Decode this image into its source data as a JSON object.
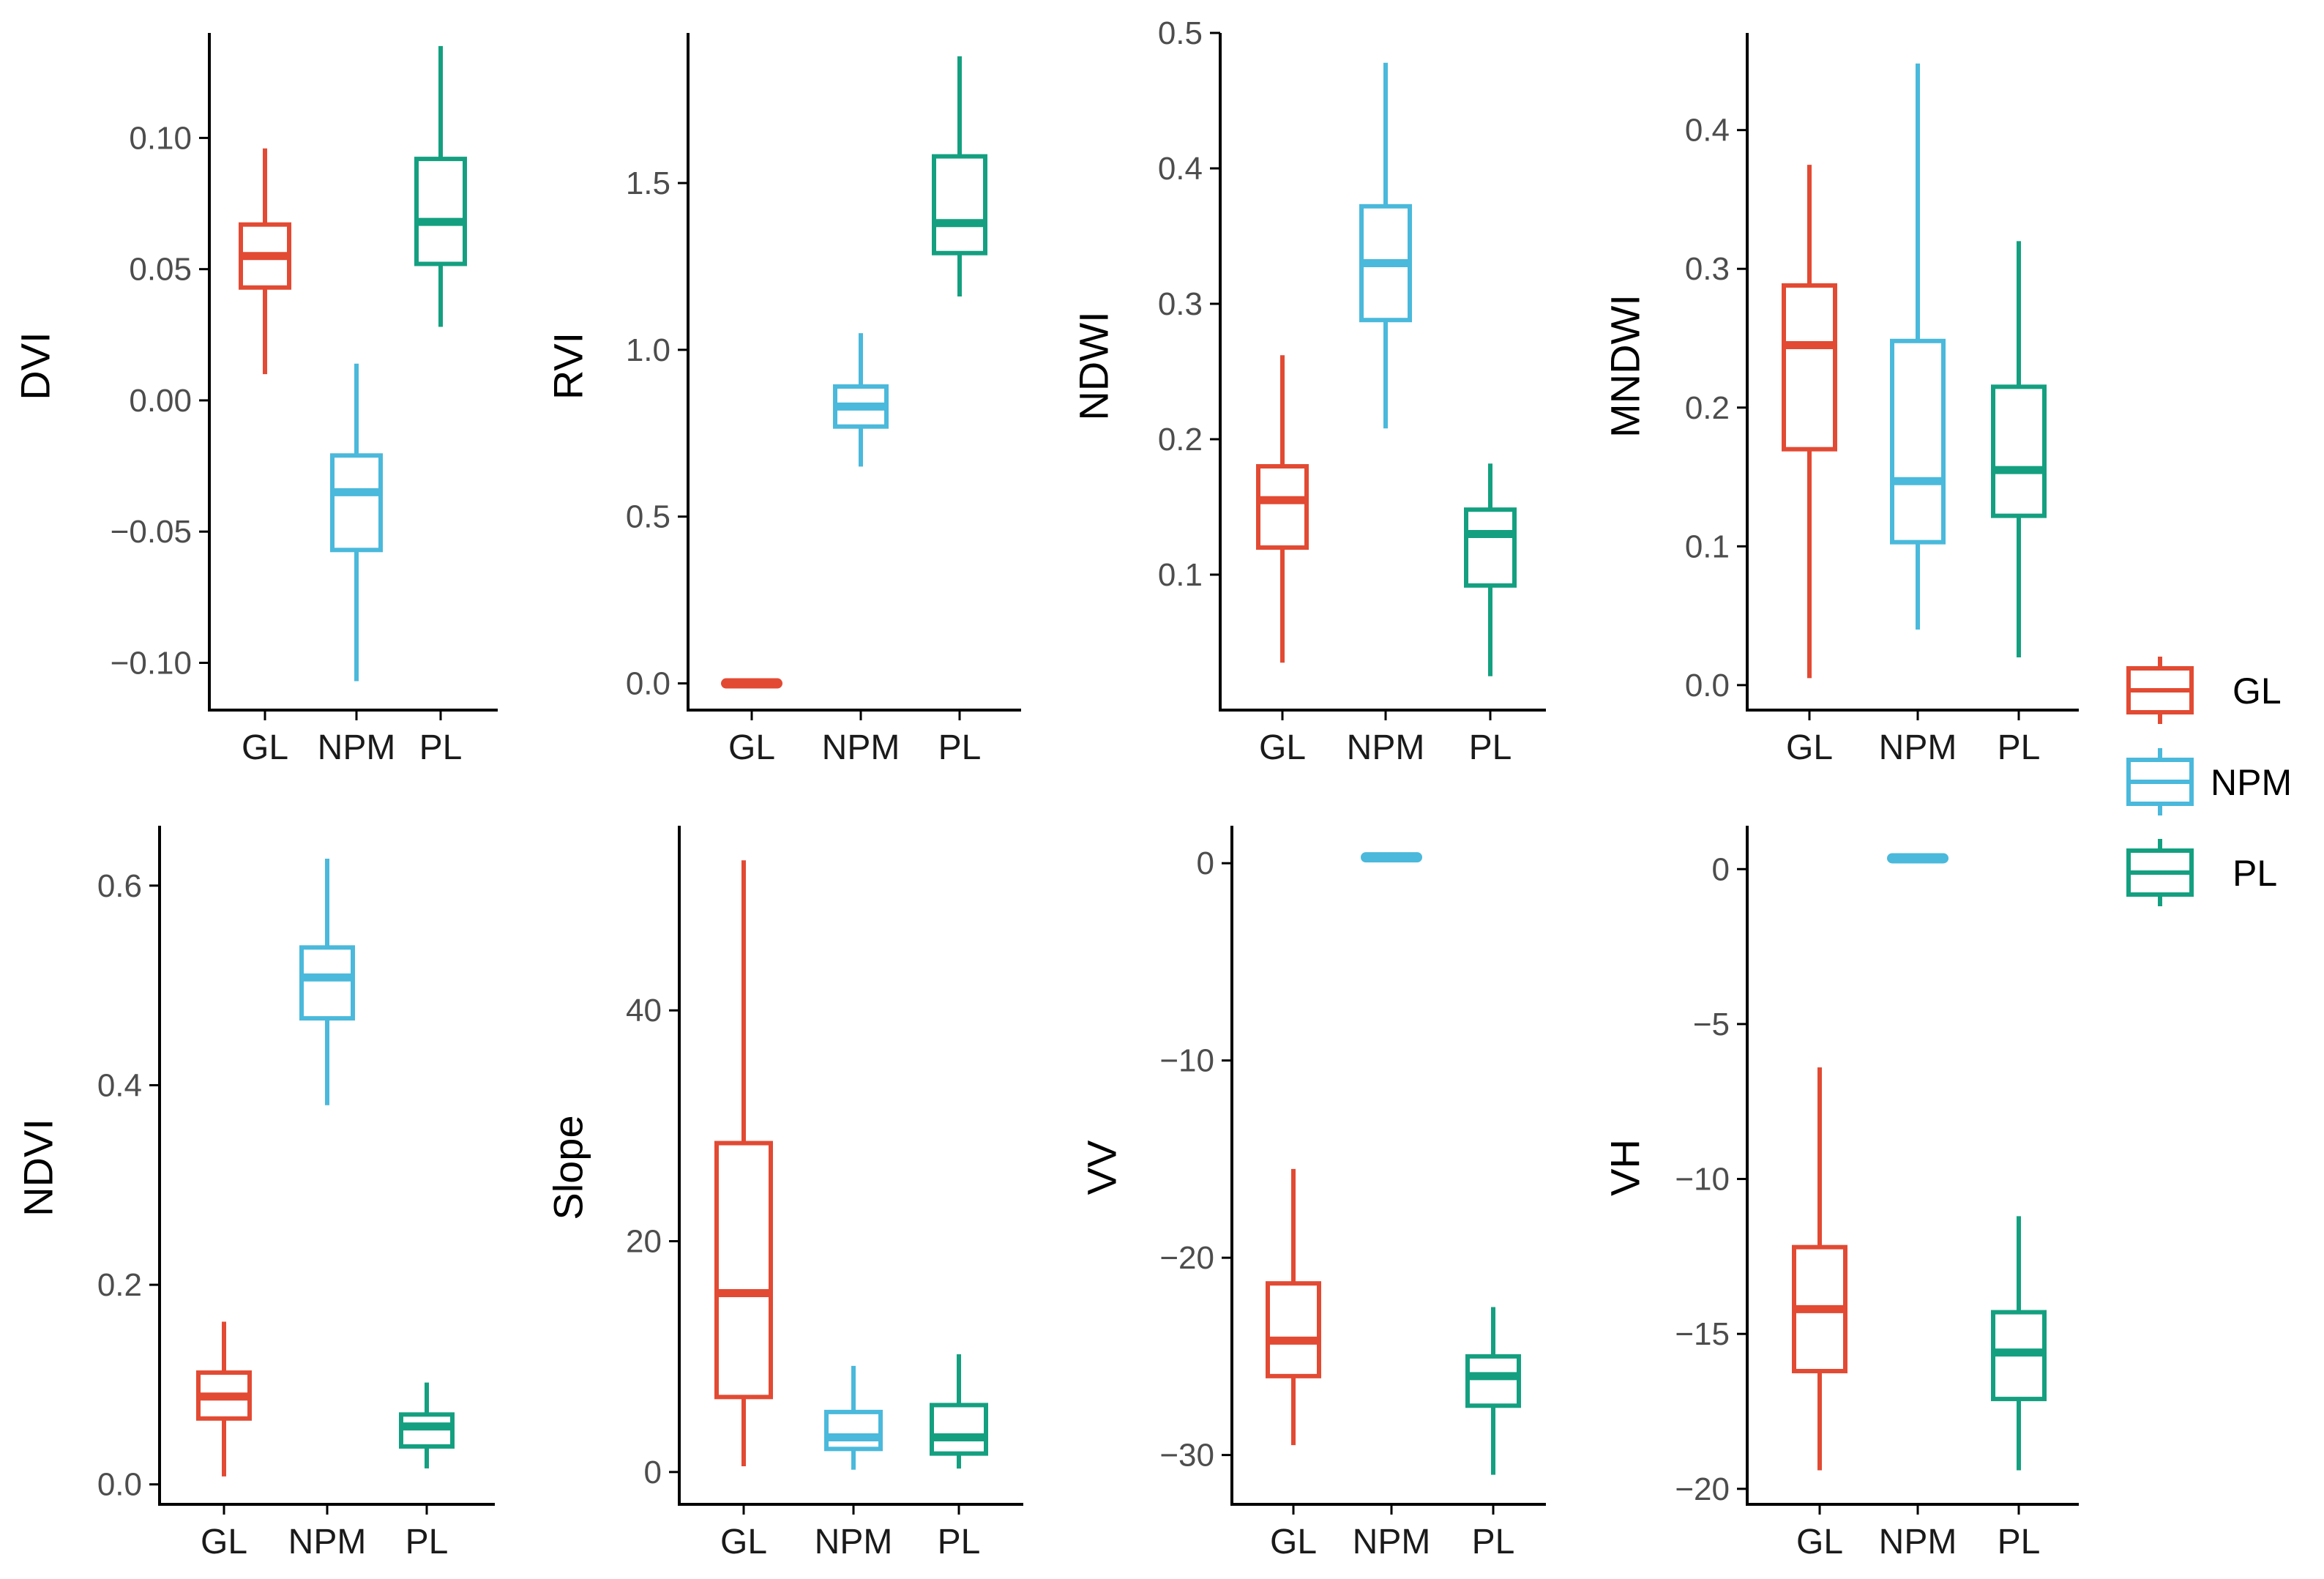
{
  "colors": {
    "GL": "#e24a33",
    "NPM": "#4ab9db",
    "PL": "#14a080",
    "axis": "#000000",
    "tick_text": "#4d4d4d"
  },
  "legend": {
    "position": "right",
    "entries": [
      {
        "key": "GL",
        "label": "GL"
      },
      {
        "key": "NPM",
        "label": "NPM"
      },
      {
        "key": "PL",
        "label": "PL"
      }
    ]
  },
  "chart_data": [
    {
      "type": "boxplot",
      "ylabel": "DVI",
      "categories": [
        "GL",
        "NPM",
        "PL"
      ],
      "ylim": [
        -0.118,
        0.14
      ],
      "yticks": [
        -0.1,
        -0.05,
        0.0,
        0.05,
        0.1
      ],
      "ytick_labels": [
        "−0.10",
        "−0.05",
        "0.00",
        "0.05",
        "0.10"
      ],
      "series": [
        {
          "name": "GL",
          "min": 0.01,
          "q1": 0.043,
          "median": 0.055,
          "q3": 0.067,
          "max": 0.096
        },
        {
          "name": "NPM",
          "min": -0.107,
          "q1": -0.057,
          "median": -0.035,
          "q3": -0.021,
          "max": 0.014
        },
        {
          "name": "PL",
          "min": 0.028,
          "q1": 0.052,
          "median": 0.068,
          "q3": 0.092,
          "max": 0.135
        }
      ]
    },
    {
      "type": "boxplot",
      "ylabel": "RVI",
      "categories": [
        "GL",
        "NPM",
        "PL"
      ],
      "ylim": [
        -0.08,
        1.95
      ],
      "yticks": [
        0.0,
        0.5,
        1.0,
        1.5
      ],
      "ytick_labels": [
        "0.0",
        "0.5",
        "1.0",
        "1.5"
      ],
      "series": [
        {
          "name": "GL",
          "min": 0.0,
          "q1": 0.0,
          "median": 0.0,
          "q3": 0.0,
          "max": 0.0
        },
        {
          "name": "NPM",
          "min": 0.65,
          "q1": 0.77,
          "median": 0.83,
          "q3": 0.89,
          "max": 1.05
        },
        {
          "name": "PL",
          "min": 1.16,
          "q1": 1.29,
          "median": 1.38,
          "q3": 1.58,
          "max": 1.88
        }
      ]
    },
    {
      "type": "boxplot",
      "ylabel": "NDWI",
      "categories": [
        "GL",
        "NPM",
        "PL"
      ],
      "ylim": [
        0.0,
        0.5
      ],
      "yticks": [
        0.1,
        0.2,
        0.3,
        0.4,
        0.5
      ],
      "ytick_labels": [
        "0.1",
        "0.2",
        "0.3",
        "0.4",
        "0.5"
      ],
      "series": [
        {
          "name": "GL",
          "min": 0.035,
          "q1": 0.12,
          "median": 0.155,
          "q3": 0.18,
          "max": 0.262
        },
        {
          "name": "NPM",
          "min": 0.208,
          "q1": 0.288,
          "median": 0.33,
          "q3": 0.372,
          "max": 0.478
        },
        {
          "name": "PL",
          "min": 0.025,
          "q1": 0.092,
          "median": 0.13,
          "q3": 0.148,
          "max": 0.182
        }
      ]
    },
    {
      "type": "boxplot",
      "ylabel": "MNDWI",
      "categories": [
        "GL",
        "NPM",
        "PL"
      ],
      "ylim": [
        -0.018,
        0.47
      ],
      "yticks": [
        0.0,
        0.1,
        0.2,
        0.3,
        0.4
      ],
      "ytick_labels": [
        "0.0",
        "0.1",
        "0.2",
        "0.3",
        "0.4"
      ],
      "series": [
        {
          "name": "GL",
          "min": 0.005,
          "q1": 0.17,
          "median": 0.245,
          "q3": 0.288,
          "max": 0.375
        },
        {
          "name": "NPM",
          "min": 0.04,
          "q1": 0.103,
          "median": 0.147,
          "q3": 0.248,
          "max": 0.448
        },
        {
          "name": "PL",
          "min": 0.02,
          "q1": 0.122,
          "median": 0.155,
          "q3": 0.215,
          "max": 0.32
        }
      ]
    },
    {
      "type": "boxplot",
      "ylabel": "NDVI",
      "categories": [
        "GL",
        "NPM",
        "PL"
      ],
      "ylim": [
        -0.02,
        0.66
      ],
      "yticks": [
        0.0,
        0.2,
        0.4,
        0.6
      ],
      "ytick_labels": [
        "0.0",
        "0.2",
        "0.4",
        "0.6"
      ],
      "series": [
        {
          "name": "GL",
          "min": 0.008,
          "q1": 0.066,
          "median": 0.088,
          "q3": 0.112,
          "max": 0.163
        },
        {
          "name": "NPM",
          "min": 0.38,
          "q1": 0.467,
          "median": 0.508,
          "q3": 0.538,
          "max": 0.627
        },
        {
          "name": "PL",
          "min": 0.016,
          "q1": 0.038,
          "median": 0.058,
          "q3": 0.07,
          "max": 0.102
        }
      ]
    },
    {
      "type": "boxplot",
      "ylabel": "Slope",
      "categories": [
        "GL",
        "NPM",
        "PL"
      ],
      "ylim": [
        -2.8,
        56
      ],
      "yticks": [
        0,
        20,
        40
      ],
      "ytick_labels": [
        "0",
        "20",
        "40"
      ],
      "series": [
        {
          "name": "GL",
          "min": 0.5,
          "q1": 6.5,
          "median": 15.5,
          "q3": 28.5,
          "max": 53.0
        },
        {
          "name": "NPM",
          "min": 0.2,
          "q1": 2.0,
          "median": 3.0,
          "q3": 5.2,
          "max": 9.2
        },
        {
          "name": "PL",
          "min": 0.3,
          "q1": 1.6,
          "median": 3.0,
          "q3": 5.8,
          "max": 10.2
        }
      ]
    },
    {
      "type": "boxplot",
      "ylabel": "VV",
      "categories": [
        "GL",
        "NPM",
        "PL"
      ],
      "ylim": [
        -32.5,
        1.9
      ],
      "yticks": [
        -30,
        -20,
        -10,
        0
      ],
      "ytick_labels": [
        "−30",
        "−20",
        "−10",
        "0"
      ],
      "series": [
        {
          "name": "GL",
          "min": -29.5,
          "q1": -26.0,
          "median": -24.2,
          "q3": -21.3,
          "max": -15.5
        },
        {
          "name": "NPM",
          "min": 0.3,
          "q1": 0.3,
          "median": 0.3,
          "q3": 0.3,
          "max": 0.3
        },
        {
          "name": "PL",
          "min": -31.0,
          "q1": -27.5,
          "median": -26.0,
          "q3": -25.0,
          "max": -22.5
        }
      ]
    },
    {
      "type": "boxplot",
      "ylabel": "VH",
      "categories": [
        "GL",
        "NPM",
        "PL"
      ],
      "ylim": [
        -20.5,
        1.4
      ],
      "yticks": [
        -20,
        -15,
        -10,
        -5,
        0
      ],
      "ytick_labels": [
        "−20",
        "−15",
        "−10",
        "−5",
        "0"
      ],
      "series": [
        {
          "name": "GL",
          "min": -19.4,
          "q1": -16.2,
          "median": -14.2,
          "q3": -12.2,
          "max": -6.4
        },
        {
          "name": "NPM",
          "min": 0.35,
          "q1": 0.35,
          "median": 0.35,
          "q3": 0.35,
          "max": 0.35
        },
        {
          "name": "PL",
          "min": -19.4,
          "q1": -17.1,
          "median": -15.6,
          "q3": -14.3,
          "max": -11.2
        }
      ]
    }
  ]
}
